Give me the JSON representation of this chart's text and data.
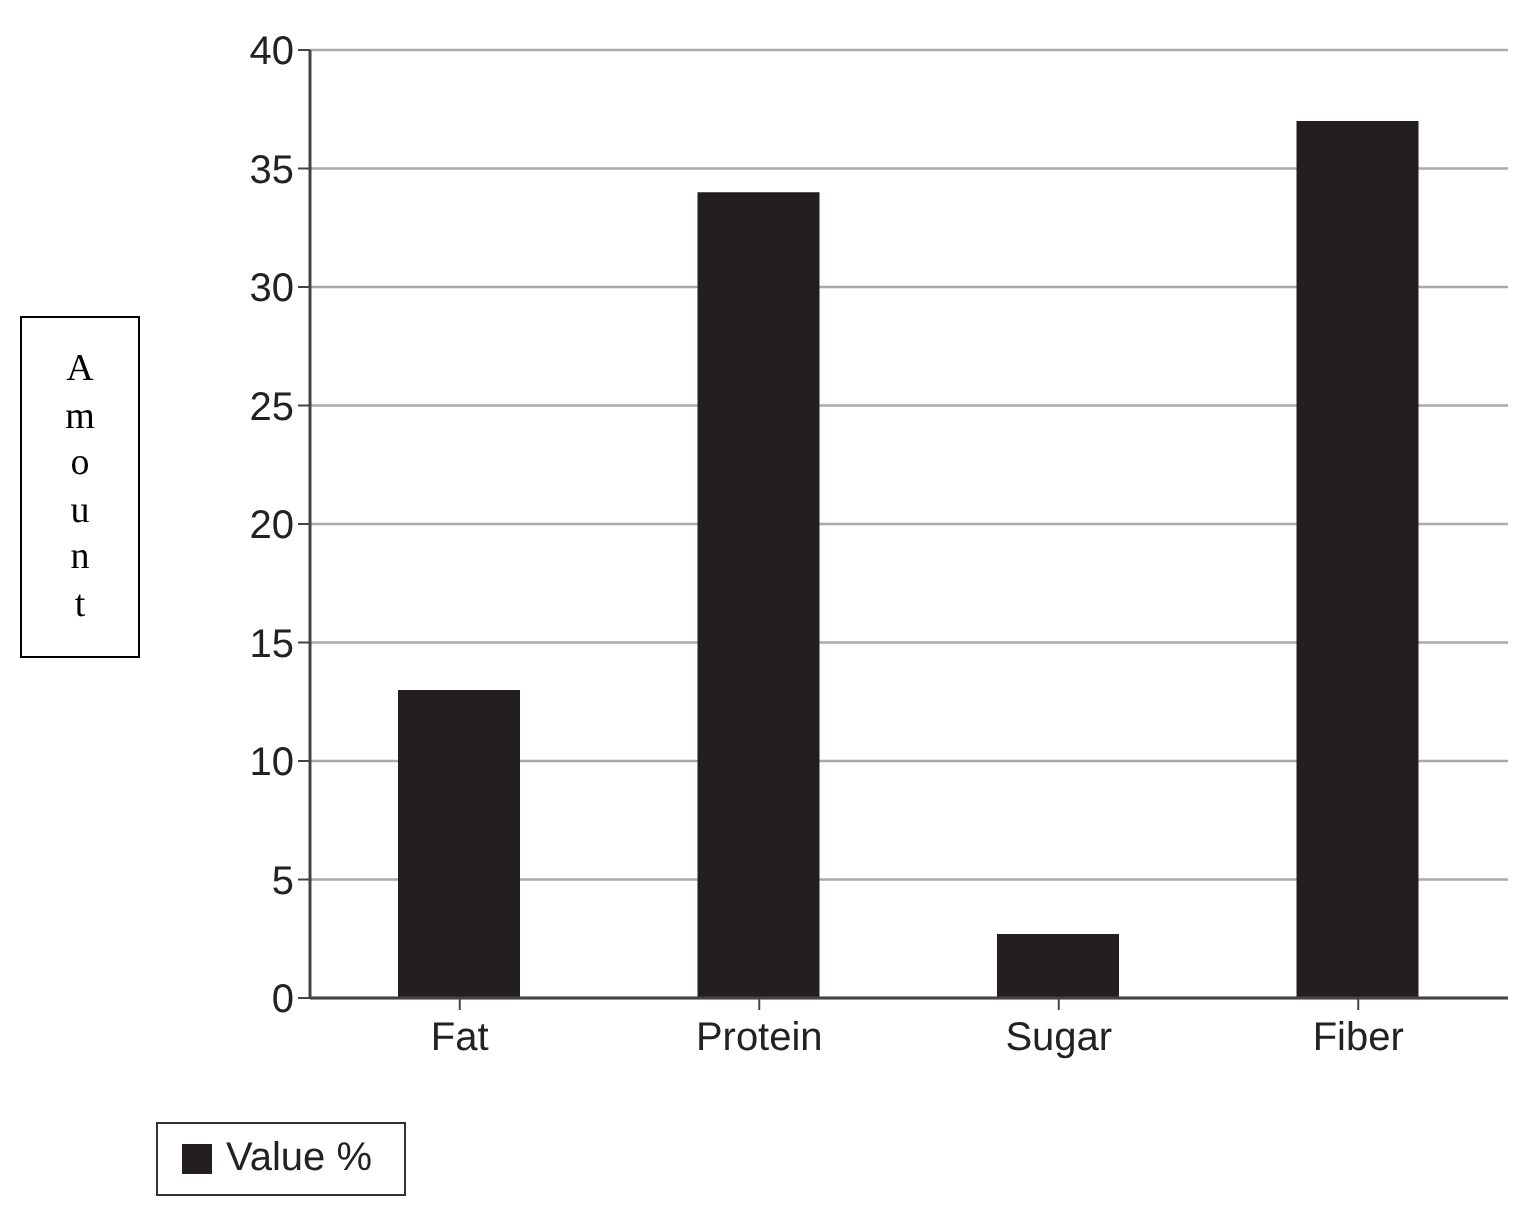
{
  "chart_data": {
    "type": "bar",
    "ylabel": "Amount",
    "categories": [
      "Fat",
      "Protein",
      "Sugar",
      "Fiber"
    ],
    "series": [
      {
        "name": "Value %",
        "color": "#231f20",
        "values": [
          13,
          34,
          2.7,
          37
        ]
      }
    ],
    "ylim": [
      0,
      40
    ],
    "yticks": [
      0,
      5,
      10,
      15,
      20,
      25,
      30,
      35,
      40
    ],
    "grid": "y",
    "legend": "bottom"
  }
}
